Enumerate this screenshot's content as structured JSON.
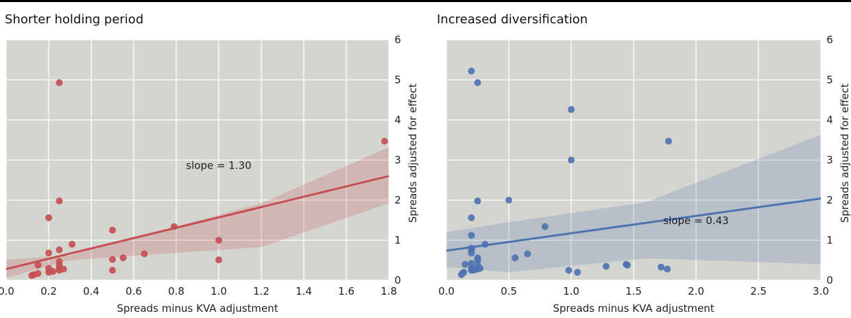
{
  "chart_data": [
    {
      "type": "scatter",
      "title": "Shorter holding period",
      "xlabel": "Spreads minus KVA adjustment",
      "ylabel": "Spreads adjusted for effect",
      "xlim": [
        0.0,
        1.8
      ],
      "ylim": [
        0,
        6
      ],
      "xticks": [
        0.0,
        0.2,
        0.4,
        0.6,
        0.8,
        1.0,
        1.2,
        1.4,
        1.6,
        1.8
      ],
      "xtick_labels": [
        "0.0",
        "0.2",
        "0.4",
        "0.6",
        "0.8",
        "1.0",
        "1.2",
        "1.4",
        "1.6",
        "1.8"
      ],
      "yticks": [
        0,
        1,
        2,
        3,
        4,
        5,
        6
      ],
      "ytick_labels": [
        "0",
        "1",
        "2",
        "3",
        "4",
        "5",
        "6"
      ],
      "y_axis_side": "right",
      "grid": true,
      "color": "#c44e52",
      "points": [
        [
          0.25,
          4.93
        ],
        [
          1.78,
          3.47
        ],
        [
          0.25,
          1.98
        ],
        [
          0.2,
          1.56
        ],
        [
          0.5,
          1.25
        ],
        [
          0.79,
          1.34
        ],
        [
          1.0,
          1.0
        ],
        [
          0.31,
          0.9
        ],
        [
          0.25,
          0.76
        ],
        [
          0.2,
          0.68
        ],
        [
          0.65,
          0.66
        ],
        [
          0.55,
          0.56
        ],
        [
          0.5,
          0.52
        ],
        [
          1.0,
          0.51
        ],
        [
          0.25,
          0.47
        ],
        [
          0.25,
          0.38
        ],
        [
          0.15,
          0.38
        ],
        [
          0.2,
          0.3
        ],
        [
          0.25,
          0.3
        ],
        [
          0.27,
          0.28
        ],
        [
          0.5,
          0.25
        ],
        [
          0.22,
          0.22
        ],
        [
          0.2,
          0.2
        ],
        [
          0.15,
          0.17
        ],
        [
          0.12,
          0.12
        ],
        [
          0.25,
          0.25
        ],
        [
          0.13,
          0.14
        ]
      ],
      "fit": {
        "x0": 0.0,
        "y0": 0.28,
        "x1": 1.8,
        "y1": 2.6
      },
      "ci_band": {
        "lower": [
          0.06,
          0.5,
          0.83,
          1.92
        ],
        "upper": [
          0.52,
          0.62,
          1.92,
          3.32
        ],
        "x": [
          0.0,
          0.3,
          1.2,
          1.8
        ]
      },
      "annotation": {
        "text": "slope = 1.30",
        "x": 1.0,
        "y": 2.78
      }
    },
    {
      "type": "scatter",
      "title": "Increased diversification",
      "xlabel": "Spreads minus KVA adjustment",
      "ylabel": "Spreads adjusted for effect",
      "xlim": [
        0.0,
        3.0
      ],
      "ylim": [
        0,
        6
      ],
      "xticks": [
        0.0,
        0.5,
        1.0,
        1.5,
        2.0,
        2.5,
        3.0
      ],
      "xtick_labels": [
        "0.0",
        "0.5",
        "1.0",
        "1.5",
        "2.0",
        "2.5",
        "3.0"
      ],
      "yticks": [
        0,
        1,
        2,
        3,
        4,
        5,
        6
      ],
      "ytick_labels": [
        "0",
        "1",
        "2",
        "3",
        "4",
        "5",
        "6"
      ],
      "y_axis_side": "right",
      "grid": true,
      "color": "#4c72b0",
      "points": [
        [
          0.2,
          5.22
        ],
        [
          0.25,
          4.93
        ],
        [
          1.0,
          4.26
        ],
        [
          1.78,
          3.47
        ],
        [
          1.0,
          3.0
        ],
        [
          0.25,
          1.98
        ],
        [
          0.5,
          2.0
        ],
        [
          0.2,
          1.56
        ],
        [
          0.79,
          1.34
        ],
        [
          0.2,
          1.12
        ],
        [
          0.31,
          0.9
        ],
        [
          0.2,
          0.8
        ],
        [
          0.2,
          0.76
        ],
        [
          0.2,
          0.68
        ],
        [
          0.65,
          0.66
        ],
        [
          0.25,
          0.56
        ],
        [
          0.55,
          0.56
        ],
        [
          0.25,
          0.5
        ],
        [
          0.2,
          0.42
        ],
        [
          0.15,
          0.4
        ],
        [
          1.28,
          0.35
        ],
        [
          1.45,
          0.38
        ],
        [
          1.72,
          0.33
        ],
        [
          1.77,
          0.28
        ],
        [
          1.44,
          0.4
        ],
        [
          0.98,
          0.25
        ],
        [
          1.05,
          0.2
        ],
        [
          0.25,
          0.38
        ],
        [
          0.27,
          0.3
        ],
        [
          0.2,
          0.3
        ],
        [
          0.22,
          0.25
        ],
        [
          0.25,
          0.28
        ],
        [
          0.14,
          0.2
        ],
        [
          0.12,
          0.14
        ],
        [
          0.13,
          0.18
        ],
        [
          0.2,
          0.25
        ]
      ],
      "fit": {
        "x0": 0.0,
        "y0": 0.74,
        "x1": 3.0,
        "y1": 2.04
      },
      "ci_band": {
        "lower": [
          0.33,
          0.2,
          0.55,
          0.4
        ],
        "upper": [
          1.2,
          1.45,
          1.95,
          3.63
        ],
        "x": [
          0.0,
          0.5,
          1.6,
          3.0
        ]
      },
      "annotation": {
        "text": "slope = 0.43",
        "x": 2.0,
        "y": 1.4
      }
    }
  ]
}
